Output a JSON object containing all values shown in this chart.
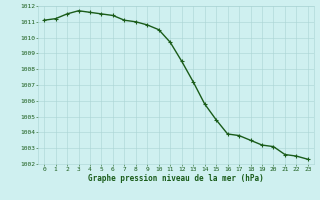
{
  "x": [
    0,
    1,
    2,
    3,
    4,
    5,
    6,
    7,
    8,
    9,
    10,
    11,
    12,
    13,
    14,
    15,
    16,
    17,
    18,
    19,
    20,
    21,
    22,
    23
  ],
  "y": [
    1011.1,
    1011.2,
    1011.5,
    1011.7,
    1011.6,
    1011.5,
    1011.4,
    1011.1,
    1011.0,
    1010.8,
    1010.5,
    1009.7,
    1008.5,
    1007.2,
    1005.8,
    1004.8,
    1003.9,
    1003.8,
    1003.5,
    1003.2,
    1003.1,
    1002.6,
    1002.5,
    1002.3
  ],
  "line_color": "#1a5c1a",
  "marker": "+",
  "marker_size": 3,
  "bg_color": "#cff0f0",
  "grid_color": "#aad4d4",
  "xlabel": "Graphe pression niveau de la mer (hPa)",
  "xlabel_color": "#1a5c1a",
  "tick_color": "#1a5c1a",
  "ylim": [
    1002,
    1012
  ],
  "xlim": [
    -0.5,
    23.5
  ],
  "yticks": [
    1002,
    1003,
    1004,
    1005,
    1006,
    1007,
    1008,
    1009,
    1010,
    1011,
    1012
  ],
  "xticks": [
    0,
    1,
    2,
    3,
    4,
    5,
    6,
    7,
    8,
    9,
    10,
    11,
    12,
    13,
    14,
    15,
    16,
    17,
    18,
    19,
    20,
    21,
    22,
    23
  ],
  "line_width": 1.0,
  "tick_fontsize": 4.5,
  "xlabel_fontsize": 5.5,
  "xlabel_fontweight": "bold"
}
